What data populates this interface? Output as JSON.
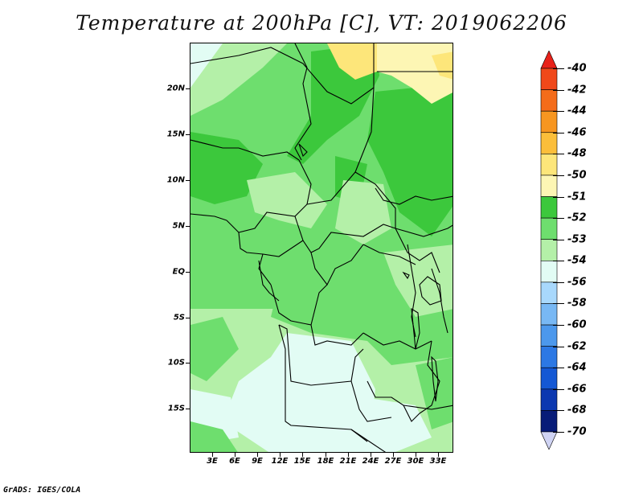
{
  "title": "Temperature at 200hPa [C], VT: 2019062206",
  "credit": "GrADS: IGES/COLA",
  "map": {
    "lat_range": [
      -20,
      24.5
    ],
    "lon_range": [
      0,
      35
    ],
    "lat_labels": [
      "20N",
      "15N",
      "10N",
      "5N",
      "EQ",
      "5S",
      "10S",
      "15S"
    ],
    "lat_values": [
      20,
      15,
      10,
      5,
      0,
      -5,
      -10,
      -15
    ],
    "lon_labels": [
      "3E",
      "6E",
      "9E",
      "12E",
      "15E",
      "18E",
      "21E",
      "24E",
      "27E",
      "30E",
      "33E"
    ],
    "lon_values": [
      3,
      6,
      9,
      12,
      15,
      18,
      21,
      24,
      27,
      30,
      33
    ]
  },
  "colorbar": {
    "labels": [
      "-40",
      "-42",
      "-44",
      "-46",
      "-48",
      "-50",
      "-51",
      "-52",
      "-53",
      "-54",
      "-56",
      "-58",
      "-60",
      "-62",
      "-64",
      "-66",
      "-68",
      "-70"
    ],
    "colors": [
      "#e8221a",
      "#f0481a",
      "#f46c1a",
      "#f79620",
      "#fbbe3a",
      "#fde67a",
      "#fdf6b4",
      "#3cc83c",
      "#6ede6e",
      "#b4f0a8",
      "#e2fcf4",
      "#a8d8fc",
      "#78b8f4",
      "#4c98ec",
      "#2c78e4",
      "#1458d4",
      "#0c38b0",
      "#081c78",
      "#d0d4f4"
    ]
  },
  "colors": {
    "land_main": "#6ede6e",
    "dark_green": "#3cc83c",
    "light_green": "#b4f0a8",
    "pale": "#e2fcf4",
    "yellow": "#fde67a",
    "pale_yellow": "#fdf6b4"
  }
}
